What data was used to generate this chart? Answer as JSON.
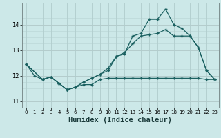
{
  "xlabel": "Humidex (Indice chaleur)",
  "bg_color": "#cce8e8",
  "grid_color_minor": "#b8d8d8",
  "grid_color_major": "#c8e0e0",
  "line_color": "#1a6060",
  "xlim": [
    -0.5,
    23.5
  ],
  "ylim": [
    10.75,
    14.85
  ],
  "xticks": [
    0,
    1,
    2,
    3,
    4,
    5,
    6,
    7,
    8,
    9,
    10,
    11,
    12,
    13,
    14,
    15,
    16,
    17,
    18,
    19,
    20,
    21,
    22,
    23
  ],
  "yticks": [
    11,
    12,
    13,
    14
  ],
  "series1_x": [
    0,
    1,
    2,
    3,
    4,
    5,
    6,
    7,
    8,
    9,
    10,
    11,
    12,
    13,
    14,
    15,
    16,
    17,
    18,
    19,
    20,
    21,
    22,
    23
  ],
  "series1_y": [
    12.45,
    12.0,
    11.85,
    11.95,
    11.7,
    11.45,
    11.55,
    11.65,
    11.65,
    11.85,
    11.9,
    11.9,
    11.9,
    11.9,
    11.9,
    11.9,
    11.9,
    11.9,
    11.9,
    11.9,
    11.9,
    11.9,
    11.85,
    11.85
  ],
  "series2_x": [
    0,
    2,
    3,
    4,
    5,
    6,
    7,
    8,
    9,
    10,
    11,
    12,
    13,
    14,
    15,
    16,
    17,
    18,
    19,
    20,
    21,
    22,
    23
  ],
  "series2_y": [
    12.45,
    11.85,
    11.95,
    11.7,
    11.45,
    11.55,
    11.75,
    11.9,
    12.05,
    12.3,
    12.75,
    12.9,
    13.25,
    13.55,
    13.6,
    13.65,
    13.8,
    13.55,
    13.55,
    13.55,
    13.1,
    12.2,
    11.85
  ],
  "series3_x": [
    0,
    2,
    3,
    4,
    5,
    6,
    7,
    8,
    9,
    10,
    11,
    12,
    13,
    14,
    15,
    16,
    17,
    18,
    19,
    20,
    21,
    22,
    23
  ],
  "series3_y": [
    12.45,
    11.85,
    11.95,
    11.7,
    11.45,
    11.55,
    11.75,
    11.9,
    12.05,
    12.2,
    12.75,
    12.85,
    13.55,
    13.65,
    14.2,
    14.2,
    14.6,
    14.0,
    13.85,
    13.55,
    13.1,
    12.2,
    11.85
  ]
}
